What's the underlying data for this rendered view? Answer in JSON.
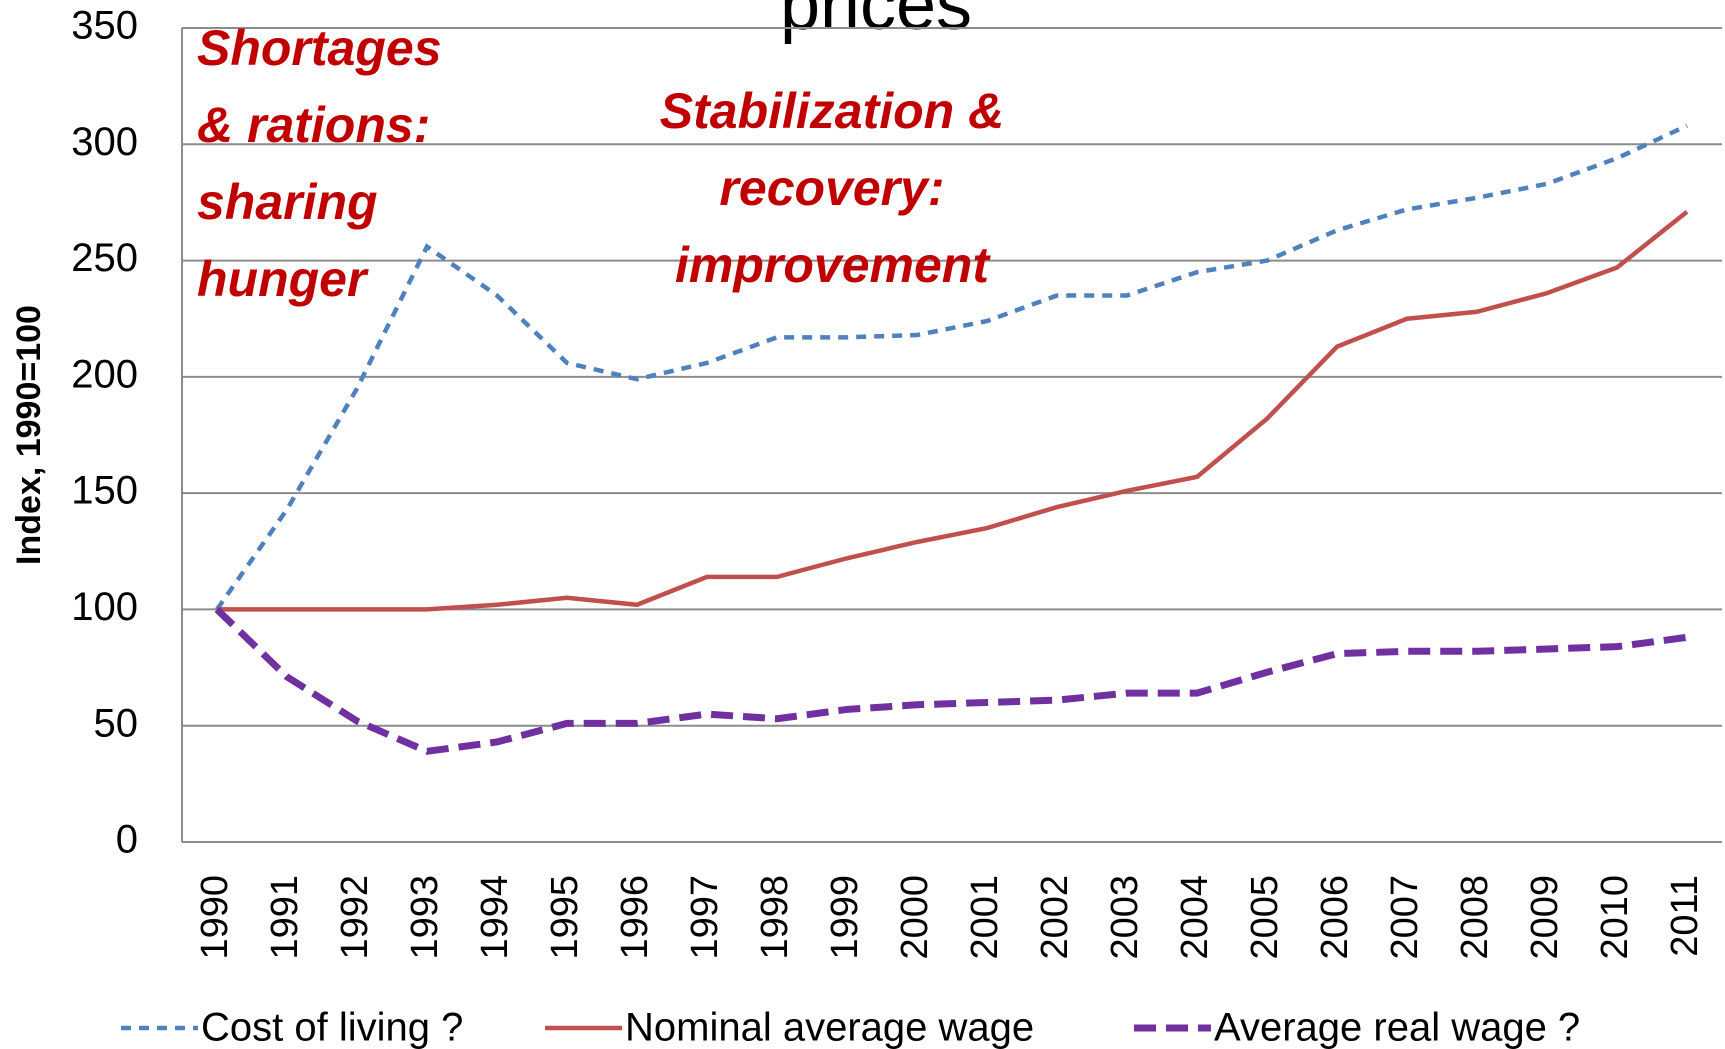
{
  "chart_data": {
    "type": "line",
    "title": "prices",
    "y_label": "Index, 1990=100",
    "categories": [
      "1990",
      "1991",
      "1992",
      "1993",
      "1994",
      "1995",
      "1996",
      "1997",
      "1998",
      "1999",
      "2000",
      "2001",
      "2002",
      "2003",
      "2004",
      "2005",
      "2006",
      "2007",
      "2008",
      "2009",
      "2010",
      "2011"
    ],
    "series": [
      {
        "name": "Cost of living ?",
        "color": "#4f81bd",
        "dash": "dashed",
        "values": [
          100,
          143,
          195,
          256,
          235,
          206,
          199,
          206,
          217,
          217,
          218,
          224,
          235,
          235,
          245,
          250,
          263,
          272,
          277,
          283,
          294,
          308
        ]
      },
      {
        "name": "Nominal average wage",
        "color": "#c0504d",
        "dash": "solid",
        "values": [
          100,
          100,
          100,
          100,
          102,
          105,
          102,
          114,
          114,
          122,
          129,
          135,
          144,
          151,
          157,
          182,
          213,
          225,
          228,
          236,
          247,
          271
        ]
      },
      {
        "name": "Average real wage ?",
        "color": "#7030a0",
        "dash": "long-dashed",
        "values": [
          100,
          71,
          52,
          39,
          43,
          51,
          51,
          55,
          53,
          57,
          59,
          60,
          61,
          64,
          64,
          73,
          81,
          82,
          82,
          83,
          84,
          88
        ]
      }
    ],
    "ylim": [
      0,
      350
    ],
    "yticks": [
      0,
      50,
      100,
      150,
      200,
      250,
      300,
      350
    ],
    "grid": true,
    "legend": "bottom",
    "annotations": [
      {
        "lines": [
          "Shortages",
          "& rations:",
          "sharing",
          "hunger"
        ]
      },
      {
        "lines": [
          "Stabilization &",
          "recovery:",
          "improvement"
        ]
      }
    ]
  }
}
